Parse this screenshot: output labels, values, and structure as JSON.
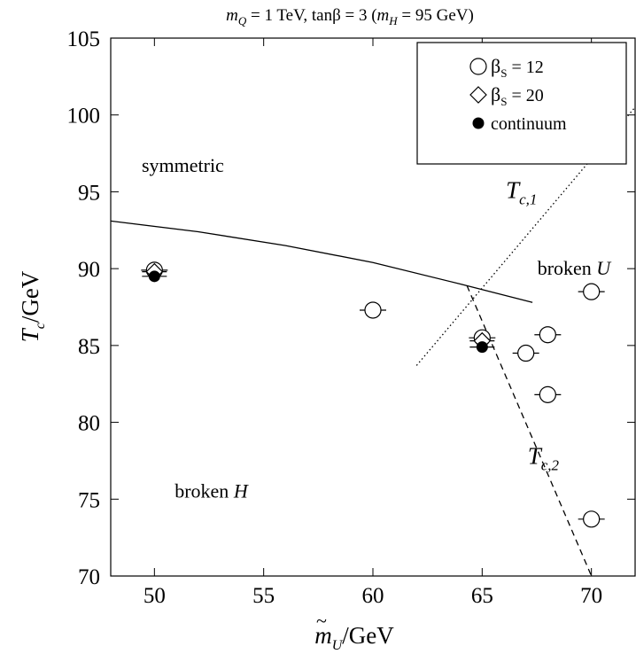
{
  "chart_data": {
    "type": "scatter",
    "title": "m_Q = 1 TeV, tanβ = 3 (m_H = 95 GeV)",
    "title_parts": {
      "m1": "m",
      "sub1": "Q",
      "mid": " = 1 TeV, tanβ = 3 (",
      "m2": "m",
      "sub2": "H",
      "end": " = 95 GeV)"
    },
    "xlabel": "m̃_U/GeV",
    "xlabel_parts": {
      "m": "m",
      "tilde": "~",
      "sub": "U",
      "unit": "/GeV"
    },
    "ylabel": "T_c/GeV",
    "ylabel_parts": {
      "t": "T",
      "sub": "c",
      "unit": "/GeV"
    },
    "xlim": [
      48,
      72
    ],
    "ylim": [
      70,
      105
    ],
    "xticks": [
      50,
      55,
      60,
      65,
      70
    ],
    "yticks": [
      70,
      75,
      80,
      85,
      90,
      95,
      100,
      105
    ],
    "legend_position": "top-right",
    "legend": [
      {
        "marker": "circle-open",
        "label": "β_S = 12",
        "beta": "β",
        "sub": "S",
        "rest": " = 12"
      },
      {
        "marker": "diamond-open",
        "label": "β_S = 20",
        "beta": "β",
        "sub": "S",
        "rest": " = 20"
      },
      {
        "marker": "circle-filled",
        "label": "continuum",
        "beta": "",
        "sub": "",
        "rest": "continuum"
      }
    ],
    "series": [
      {
        "name": "β_S = 12",
        "marker": "circle-open",
        "points": [
          {
            "x": 50,
            "y": 89.9
          },
          {
            "x": 60,
            "y": 87.3
          },
          {
            "x": 65,
            "y": 85.5
          },
          {
            "x": 67,
            "y": 84.5
          },
          {
            "x": 68,
            "y": 85.7
          },
          {
            "x": 68,
            "y": 81.8
          },
          {
            "x": 70,
            "y": 88.5
          },
          {
            "x": 70,
            "y": 73.7
          }
        ]
      },
      {
        "name": "β_S = 20",
        "marker": "diamond-open",
        "points": [
          {
            "x": 50,
            "y": 89.8
          },
          {
            "x": 65,
            "y": 85.3
          }
        ]
      },
      {
        "name": "continuum",
        "marker": "circle-filled",
        "points": [
          {
            "x": 50,
            "y": 89.5
          },
          {
            "x": 65,
            "y": 84.9
          }
        ]
      }
    ],
    "lines": [
      {
        "style": "solid",
        "points": [
          [
            48,
            93.1
          ],
          [
            52,
            92.4
          ],
          [
            56,
            91.5
          ],
          [
            60,
            90.4
          ],
          [
            64,
            89.0
          ],
          [
            67.3,
            87.8
          ]
        ]
      },
      {
        "style": "dotted",
        "points": [
          [
            62,
            83.7
          ],
          [
            72,
            100.5
          ]
        ]
      },
      {
        "style": "dashed",
        "points": [
          [
            64.3,
            88.9
          ],
          [
            70,
            70
          ]
        ]
      }
    ],
    "curve_labels": [
      {
        "t": "T",
        "sub": "c,1",
        "x": 66.8,
        "y": 94.6
      },
      {
        "t": "T",
        "sub": "c,2",
        "x": 67.8,
        "y": 77.3
      }
    ],
    "regions": [
      {
        "text": "symmetric",
        "italic": "",
        "x": 51.3,
        "y": 96.3
      },
      {
        "text": "broken ",
        "italic": "U",
        "x": 69.2,
        "y": 89.6
      },
      {
        "text": "broken ",
        "italic": "H",
        "x": 52.6,
        "y": 75.1
      }
    ]
  }
}
